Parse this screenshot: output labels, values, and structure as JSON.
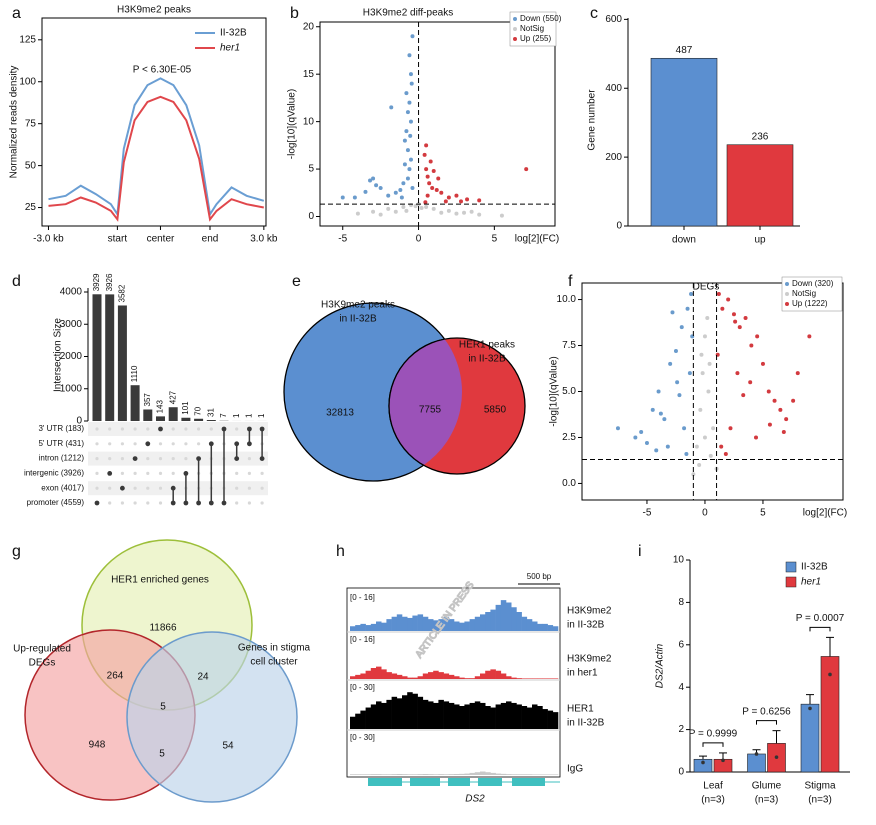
{
  "watermark": "ARTICLE IN PRESS",
  "chart_data": [
    {
      "panel": "a",
      "type": "line",
      "title": "H3K9me2 peaks",
      "y_label": "Normalized reads density",
      "annotation": "P < 6.30E-05",
      "x": [
        0,
        8,
        15,
        22,
        29,
        32,
        35,
        40,
        46,
        52,
        58,
        64,
        70,
        75,
        78,
        85,
        92,
        100
      ],
      "xlim": [
        -3,
        101
      ],
      "xticks": [
        {
          "value": 0,
          "label": "-3.0 kb"
        },
        {
          "value": 32,
          "label": "start"
        },
        {
          "value": 52,
          "label": "center"
        },
        {
          "value": 75,
          "label": "end"
        },
        {
          "value": 100,
          "label": "3.0 kb"
        }
      ],
      "ylim": [
        14,
        138
      ],
      "yticks": [
        25,
        50,
        75,
        100,
        125
      ],
      "series": [
        {
          "name": "II-32B",
          "color": "#6a9ed3",
          "values": [
            30,
            32,
            38,
            33,
            27,
            21,
            60,
            86,
            98,
            102,
            98,
            86,
            62,
            21,
            27,
            37,
            32,
            29
          ]
        },
        {
          "name": "her1",
          "color": "#e0474c",
          "values": [
            26,
            27,
            31,
            28,
            23,
            18,
            52,
            77,
            88,
            91,
            88,
            77,
            54,
            18,
            23,
            30,
            27,
            25
          ]
        }
      ]
    },
    {
      "panel": "b",
      "type": "scatter",
      "title": "H3K9me2 diff-peaks",
      "x_label": "log[2](FC)",
      "y_label": "-log[10](qValue)",
      "xlim": [
        -6.5,
        9
      ],
      "xticks": [
        -5,
        0,
        5
      ],
      "ylim": [
        -1,
        20.5
      ],
      "yticks": [
        0,
        5,
        10,
        15,
        20
      ],
      "thresholds": {
        "x": [
          0
        ],
        "y": [
          1.3
        ]
      },
      "series": [
        {
          "name": "Down (550)",
          "color": "#6a9bcc",
          "x": [
            -0.4,
            -0.5,
            -0.6,
            -0.7,
            -0.8,
            -0.9,
            -0.5,
            -0.6,
            -0.7,
            -0.4,
            -1.0,
            -1.2,
            -1.5,
            -2.0,
            -2.5,
            -3.0,
            -3.5,
            -4.2,
            -5.0,
            -0.6,
            -0.8,
            -0.5,
            -1.8,
            -2.8,
            -0.7,
            -0.9,
            -1.1,
            -0.45,
            -3.2,
            -0.55
          ],
          "values": [
            19,
            15,
            12,
            11,
            9,
            8,
            6,
            5,
            4,
            3,
            3.5,
            2.8,
            2.5,
            2.2,
            3,
            4,
            2.6,
            2,
            2,
            17,
            13,
            10,
            11.5,
            3.3,
            7,
            5.5,
            2,
            14,
            3.8,
            8.5
          ]
        },
        {
          "name": "NotSig",
          "color": "#cccccc",
          "x": [
            -3,
            -2,
            -1,
            -0.5,
            0,
            0.5,
            1,
            2,
            3,
            4,
            -4,
            -1.5,
            0.2,
            -0.2,
            1.5,
            -2.5,
            2.5,
            5.5,
            3.5,
            -0.8
          ],
          "values": [
            0.5,
            0.8,
            1,
            1.2,
            1.3,
            1,
            0.8,
            0.6,
            0.4,
            0.2,
            0.3,
            0.5,
            0.9,
            1.1,
            0.4,
            0.2,
            0.3,
            0.1,
            0.5,
            0.6
          ]
        },
        {
          "name": "Up (255)",
          "color": "#d33a3f",
          "x": [
            0.4,
            0.5,
            0.6,
            0.7,
            0.9,
            1.2,
            1.5,
            2.0,
            2.5,
            3.2,
            4.0,
            0.5,
            0.8,
            1.0,
            0.6,
            7.1,
            1.8,
            0.45,
            2.8,
            1.3
          ],
          "values": [
            6.5,
            5,
            4.2,
            3.5,
            3,
            2.8,
            2.5,
            2,
            2.2,
            1.8,
            1.7,
            7.5,
            5.8,
            4.8,
            2.2,
            5,
            1.6,
            1.5,
            1.6,
            4
          ]
        }
      ]
    },
    {
      "panel": "c",
      "type": "bar",
      "y_label": "Gene number",
      "categories": [
        "down",
        "up"
      ],
      "values": [
        487,
        236
      ],
      "colors": [
        "#5b8fd0",
        "#e0393e"
      ],
      "ylim": [
        0,
        604
      ],
      "yticks": [
        0,
        200,
        400,
        600
      ]
    },
    {
      "panel": "d",
      "type": "upset",
      "y_label": "Intersection Size",
      "ylim": [
        0,
        4000
      ],
      "yticks": [
        0,
        1000,
        2000,
        3000,
        4000
      ],
      "values": [
        3929,
        3926,
        3582,
        1110,
        357,
        143,
        427,
        101,
        70,
        31,
        7,
        1,
        1,
        1
      ],
      "sets": [
        {
          "name": "3' UTR (183)",
          "color": "#333333"
        },
        {
          "name": "5' UTR (431)",
          "color": "#333333"
        },
        {
          "name": "intron (1212)",
          "color": "#333333"
        },
        {
          "name": "intergenic (3926)",
          "color": "#333333"
        },
        {
          "name": "exon (4017)",
          "color": "#333333"
        },
        {
          "name": "promoter (4559)",
          "color": "#c0282e"
        }
      ],
      "members": [
        [
          5
        ],
        [
          3
        ],
        [
          4
        ],
        [
          2
        ],
        [
          1
        ],
        [
          0
        ],
        [
          4,
          5
        ],
        [
          3,
          5
        ],
        [
          2,
          5
        ],
        [
          1,
          5
        ],
        [
          0,
          5
        ],
        [
          1,
          2
        ],
        [
          0,
          1
        ],
        [
          0,
          2
        ]
      ],
      "color": "#3a3a3a"
    },
    {
      "panel": "e",
      "type": "venn",
      "sets": [
        {
          "label": [
            "H3K9me2 peaks",
            "in II-32B"
          ],
          "color": "#5b8fd0"
        },
        {
          "label": [
            "HER1 peaks",
            "in II-32B"
          ],
          "color": "#e0393e"
        }
      ],
      "overlap_color": "#9b52b8",
      "values": [
        32813,
        7755,
        5850
      ]
    },
    {
      "panel": "f",
      "type": "scatter",
      "title": "DEGs",
      "x_label": "log[2](FC)",
      "y_label": "-log[10](qValue)",
      "xlim": [
        -10.6,
        11.9
      ],
      "xticks": [
        -5,
        0,
        5
      ],
      "ylim": [
        -0.9,
        10.9
      ],
      "yticks": [
        {
          "value": 0,
          "label": "0.0"
        },
        2.5,
        {
          "value": 5,
          "label": "5.0"
        },
        7.5,
        {
          "value": 10,
          "label": "10.0"
        }
      ],
      "thresholds": {
        "x": [
          -1,
          1
        ],
        "y": [
          1.3
        ]
      },
      "series": [
        {
          "name": "Down (320)",
          "color": "#6a9bcc",
          "x": [
            -7.5,
            -6,
            -5,
            -4.5,
            -4,
            -3.5,
            -3,
            -2.5,
            -2,
            -1.5,
            -1.2,
            -3.2,
            -2.2,
            -1.8,
            -4.2,
            -1.3,
            -2.8,
            -5.5,
            -1.6,
            -3.8,
            -2.4,
            -1.1
          ],
          "values": [
            3,
            2.5,
            2.2,
            4,
            5,
            3.5,
            6.5,
            7.2,
            8.5,
            9.5,
            10.3,
            2,
            4.8,
            3,
            1.8,
            6,
            9.3,
            2.8,
            1.6,
            3.8,
            5.5,
            8
          ]
        },
        {
          "name": "NotSig",
          "color": "#cccccc",
          "x": [
            -1,
            -0.7,
            -0.4,
            -0.2,
            0,
            0.2,
            0.4,
            0.7,
            1,
            -0.5,
            0.5,
            0,
            -0.3,
            0.3
          ],
          "values": [
            0.5,
            2,
            4,
            6,
            8,
            9,
            6.5,
            3,
            0.8,
            1,
            1.5,
            2.5,
            7,
            5
          ]
        },
        {
          "name": "Up (1222)",
          "color": "#d33a3f",
          "x": [
            1.2,
            1.5,
            2,
            2.5,
            3,
            3.5,
            4,
            4.5,
            5,
            5.5,
            6,
            6.5,
            7,
            8,
            8.5,
            9,
            1.4,
            2.2,
            3.3,
            4.4,
            5.6,
            2.8,
            1.8,
            3.9,
            6.8,
            7.6,
            1.1,
            2.6
          ],
          "values": [
            10.3,
            9.5,
            10,
            9.2,
            8.5,
            9,
            7.5,
            8,
            6.5,
            5,
            4.5,
            4,
            3.5,
            6,
            10,
            8,
            2,
            3,
            4.8,
            2.5,
            3.2,
            6,
            1.6,
            5.5,
            2.8,
            4.5,
            7,
            8.8
          ]
        }
      ]
    },
    {
      "panel": "g",
      "type": "venn",
      "sets": [
        {
          "label": [
            "HER1 enriched genes"
          ],
          "color": "#e5efb5",
          "stroke": "#9dbf3a"
        },
        {
          "label": [
            "Up-regulated",
            "DEGs"
          ],
          "color": "#f5a3a3",
          "stroke": "#b3262b"
        },
        {
          "label": [
            "Genes  in stigma",
            "cell cluster"
          ],
          "color": "#bcd2ea",
          "stroke": "#6c9bcc"
        }
      ],
      "values": [
        11866,
        264,
        24,
        5,
        948,
        5,
        54
      ]
    },
    {
      "panel": "h",
      "type": "tracks",
      "scale_label": "500 bp",
      "gene": "DS2",
      "gene_color": "#3fbfbf",
      "tracks": [
        {
          "range": "[0 - 16]",
          "label": [
            "H3K9me2",
            "in II-32B"
          ],
          "color": "#5b8fd0",
          "ylim": [
            0,
            16
          ],
          "values": [
            2,
            2.5,
            3,
            2.5,
            3,
            4,
            3.5,
            5,
            6,
            7,
            6,
            5.5,
            6.5,
            7,
            6,
            5,
            4.5,
            5,
            6,
            5,
            4,
            3.5,
            4,
            5,
            6,
            7,
            8,
            9,
            11,
            13,
            12,
            10,
            8,
            6,
            5,
            4,
            3,
            3,
            2.5,
            2
          ]
        },
        {
          "range": "[0 - 16]",
          "label": [
            "H3K9me2",
            "in her1"
          ],
          "color": "#e0393e",
          "ylim": [
            0,
            16
          ],
          "values": [
            1,
            1.5,
            2,
            3,
            4,
            4.5,
            3.5,
            2.5,
            2,
            1.5,
            1,
            0.5,
            0.5,
            1,
            2,
            2.5,
            3,
            2.5,
            2,
            1.5,
            1,
            0.5,
            0.3,
            0.3,
            1,
            2,
            3,
            3.5,
            3,
            2,
            1,
            0.5,
            0.3,
            0.2,
            0.2,
            0.2,
            0.2,
            0.2,
            0.2,
            0.2
          ]
        },
        {
          "range": "[0 - 30]",
          "label": [
            "HER1",
            "in II-32B"
          ],
          "color": "#000000",
          "ylim": [
            0,
            30
          ],
          "values": [
            8,
            10,
            12,
            14,
            16,
            18,
            17,
            19,
            21,
            20,
            22,
            24,
            23,
            21,
            19,
            18,
            17,
            19,
            18,
            17,
            16,
            15,
            16,
            17,
            18,
            17,
            15,
            14,
            16,
            17,
            18,
            17,
            16,
            15,
            14,
            16,
            15,
            13,
            12,
            11
          ]
        },
        {
          "range": "[0 - 30]",
          "label": [
            "IgG"
          ],
          "color": "#c8c8c8",
          "ylim": [
            0,
            30
          ],
          "values": [
            0.5,
            0.5,
            0.5,
            0.5,
            0.6,
            0.6,
            0.5,
            0.5,
            0.6,
            0.7,
            0.6,
            0.5,
            0.5,
            0.6,
            0.7,
            0.6,
            0.5,
            0.6,
            0.5,
            0.6,
            0.7,
            0.8,
            1,
            1.5,
            2,
            2.5,
            2,
            1.5,
            1,
            0.8,
            0.6,
            0.5,
            0.5,
            0.5,
            0.5,
            0.4,
            0.4,
            0.4,
            0.4,
            0.4
          ]
        }
      ]
    },
    {
      "panel": "i",
      "type": "grouped_bar",
      "y_label": "DS2/Actin",
      "categories": [
        [
          "Leaf",
          "(n=3)"
        ],
        [
          "Glume",
          "(n=3)"
        ],
        [
          "Stigma",
          "(n=3)"
        ]
      ],
      "ylim": [
        0,
        10
      ],
      "yticks": [
        0,
        2,
        4,
        6,
        8,
        10
      ],
      "pvalues": [
        "P = 0.9999",
        "P = 0.6256",
        "P = 0.0007"
      ],
      "series": [
        {
          "name": "II-32B",
          "color": "#5b8fd0",
          "values": [
            0.6,
            0.85,
            3.2
          ],
          "errors": [
            0.15,
            0.2,
            0.45
          ],
          "points": [
            [
              0.45
            ],
            [
              0.85
            ],
            [
              3.0
            ]
          ]
        },
        {
          "name": "her1",
          "color": "#e0393e",
          "values": [
            0.6,
            1.35,
            5.45
          ],
          "errors": [
            0.3,
            0.6,
            0.9
          ],
          "points": [
            [
              0.55
            ],
            [
              0.7
            ],
            [
              4.6
            ]
          ]
        }
      ]
    }
  ]
}
